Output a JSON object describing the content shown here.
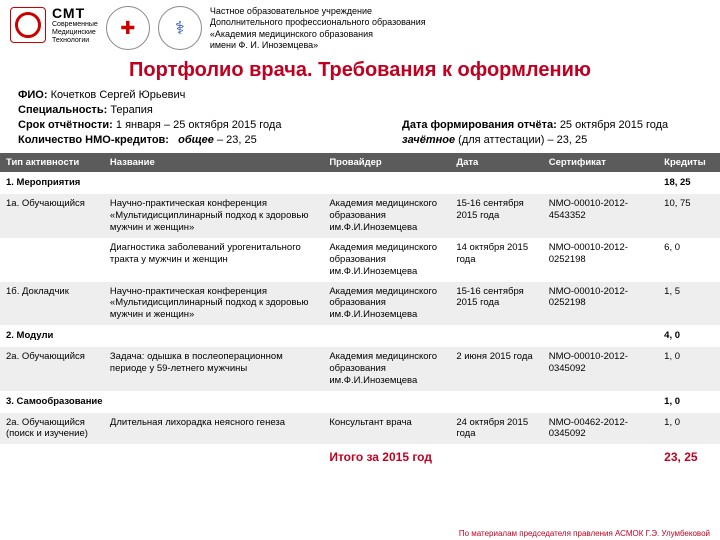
{
  "header": {
    "cmt_big": "СМТ",
    "cmt_sub": "Современные\nМедицинские\nТехнологии",
    "org": "Частное образовательное учреждение\nДополнительного профессионального образования\n«Академия медицинского образования\nимени Ф. И. Иноземцева»"
  },
  "title": "Портфолио врача. Требования к оформлению",
  "info": {
    "fio_l": "ФИО:",
    "fio_v": "Кочетков Сергей Юрьевич",
    "spec_l": "Специальность:",
    "spec_v": "Терапия",
    "term_l": "Срок отчётности:",
    "term_v": "1 января – 25 октября 2015 года",
    "date_l": "Дата формирования отчёта:",
    "date_v": "25 октября 2015 года",
    "credits_l": "Количество НМО-кредитов:",
    "credits_total_l": "общее",
    "credits_total_v": "– 23, 25",
    "credits_zach_l": "зачётное",
    "credits_zach_v": "(для аттестации) – 23, 25"
  },
  "columns": {
    "c1": "Тип активности",
    "c2": "Название",
    "c3": "Провайдер",
    "c4": "Дата",
    "c5": "Сертификат",
    "c6": "Кредиты"
  },
  "sections": {
    "s1": "1. Мероприятия",
    "s1c": "18, 25",
    "s2": "2. Модули",
    "s2c": "4, 0",
    "s3": "3. Самообразование",
    "s3c": "1, 0"
  },
  "rows": [
    {
      "type": "1а. Обучающийся",
      "name": "Научно-практическая конференция «Мультидисциплинарный подход к здоровью мужчин и женщин»",
      "prov": "Академия медицинского образования им.Ф.И.Иноземцева",
      "date": "15-16 сентября 2015 года",
      "cert": "NMO-00010-2012-4543352",
      "cred": "10, 75"
    },
    {
      "type": "",
      "name": "Диагностика заболеваний урогенитального тракта у мужчин и женщин",
      "prov": "Академия медицинского образования им.Ф.И.Иноземцева",
      "date": "14 октября 2015 года",
      "cert": "NMO-00010-2012-0252198",
      "cred": "6, 0"
    },
    {
      "type": "1б. Докладчик",
      "name": "Научно-практическая конференция «Мультидисциплинарный подход к здоровью мужчин и женщин»",
      "prov": "Академия медицинского образования им.Ф.И.Иноземцева",
      "date": "15-16 сентября 2015 года",
      "cert": "NMO-00010-2012-0252198",
      "cred": "1, 5"
    },
    {
      "type": "2а. Обучающийся",
      "name": "Задача: одышка в послеоперационном периоде у 59-летнего мужчины",
      "prov": "Академия медицинского образования им.Ф.И.Иноземцева",
      "date": "2 июня 2015 года",
      "cert": "NMO-00010-2012-0345092",
      "cred": "1, 0"
    },
    {
      "type": "2а. Обучающийся (поиск и изучение)",
      "name": "Длительная лихорадка неясного генеза",
      "prov": "Консультант врача",
      "date": "24 октября 2015 года",
      "cert": "NMO-00462-2012-0345092",
      "cred": "1, 0"
    }
  ],
  "total": {
    "label": "Итого за 2015 год",
    "value": "23, 25"
  },
  "footer": "По материалам председателя правления АСМОК Г.Э. Улумбековой"
}
